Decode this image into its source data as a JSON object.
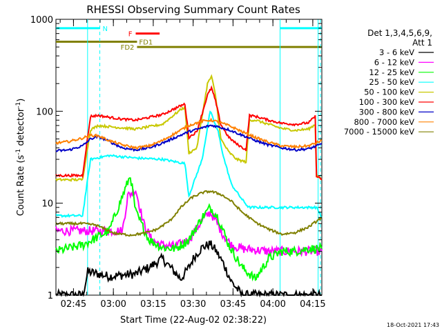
{
  "chart_data": {
    "type": "line",
    "title": "RHESSI Observing Summary Count Rates",
    "xlabel": "Start Time (22-Aug-02 02:38:22)",
    "ylabel": "Count Rate (s⁻¹ detector⁻¹)",
    "ylabel_parts": {
      "a": "Count Rate (s",
      "sup1": "-1",
      "b": " detector",
      "sup2": "-1",
      "c": ")"
    },
    "yscale": "log",
    "ylim": [
      1,
      1000
    ],
    "xlim_minutes": [
      0,
      100
    ],
    "x_ticks": [
      {
        "label": "02:45",
        "minute": 6.6
      },
      {
        "label": "03:00",
        "minute": 21.6
      },
      {
        "label": "03:15",
        "minute": 36.6
      },
      {
        "label": "03:30",
        "minute": 51.6
      },
      {
        "label": "03:45",
        "minute": 66.6
      },
      {
        "label": "04:00",
        "minute": 81.6
      },
      {
        "label": "04:15",
        "minute": 96.6
      }
    ],
    "y_ticks": [
      {
        "label": "1",
        "value": 1
      },
      {
        "label": "10",
        "value": 10
      },
      {
        "label": "100",
        "value": 100
      },
      {
        "label": "1000",
        "value": 1000
      }
    ],
    "legend_title": "Det 1,3,4,5,6,9,",
    "legend_subtitle": "Att 1",
    "legend_position": "right",
    "flags": [
      {
        "label": "N",
        "color": "#00ffff",
        "segments": [
          [
            0,
            16.5
          ],
          [
            84.3,
            100
          ]
        ],
        "level": 800
      },
      {
        "label": "F",
        "color": "#ff0000",
        "segments": [
          [
            30,
            39
          ]
        ],
        "level": 700
      },
      {
        "label": "FD1",
        "color": "#808000",
        "segments": [
          [
            0,
            30.5
          ]
        ],
        "level": 570
      },
      {
        "label": "FD2",
        "color": "#808000",
        "segments": [
          [
            30.5,
            100
          ]
        ],
        "level": 500
      }
    ],
    "saa_lines_minutes": [
      11.9,
      84.3,
      98.6
    ],
    "night_lines_minutes": [
      16.5,
      99.5
    ],
    "series": [
      {
        "name": "3 - 6 keV",
        "color": "#000000",
        "x": [
          0,
          10,
          11,
          12,
          20,
          30,
          35,
          40,
          47,
          50,
          52,
          55,
          58,
          60,
          63,
          66,
          70,
          75,
          80,
          85,
          90,
          95,
          100
        ],
        "values": [
          1,
          1,
          1.3,
          1.8,
          1.6,
          1.7,
          2.0,
          2.5,
          1.5,
          2.0,
          2.6,
          3.3,
          3.6,
          3.1,
          2.2,
          1.4,
          1,
          1,
          1,
          1,
          1,
          1,
          1
        ]
      },
      {
        "name": "6 - 12 keV",
        "color": "#ff00ff",
        "x": [
          0,
          10,
          15,
          20,
          25,
          27,
          30,
          33,
          36,
          40,
          45,
          50,
          55,
          58,
          60,
          63,
          66,
          70,
          75,
          80,
          85,
          90,
          95,
          100
        ],
        "values": [
          5,
          5,
          5,
          5,
          5,
          12,
          14,
          6,
          4,
          3.5,
          3.4,
          4.0,
          6.5,
          8.0,
          6.5,
          4.5,
          3.5,
          3.2,
          3.1,
          3.0,
          3.0,
          3.0,
          3.0,
          3.0
        ]
      },
      {
        "name": "12 - 25 keV",
        "color": "#00ff00",
        "x": [
          0,
          10,
          20,
          28,
          30,
          35,
          40,
          45,
          50,
          55,
          58,
          61,
          65,
          70,
          75,
          80,
          85,
          90,
          95,
          100
        ],
        "values": [
          3,
          3.5,
          5,
          20,
          8,
          4,
          3.3,
          3.2,
          4,
          7,
          9,
          7,
          3.5,
          2.0,
          1.5,
          2.5,
          3.0,
          3.0,
          3.2,
          3.2
        ]
      },
      {
        "name": "25 - 50 keV",
        "color": "#00ffff",
        "x": [
          0,
          10,
          13,
          20,
          30,
          40,
          48.5,
          50,
          55,
          58,
          61,
          63,
          66,
          70,
          72.5,
          80,
          85,
          90,
          95,
          98,
          100
        ],
        "values": [
          7.3,
          7.3,
          30,
          33,
          31,
          30,
          27,
          12,
          30,
          100,
          60,
          32,
          16,
          11,
          9,
          9,
          9,
          9,
          9,
          9,
          7
        ]
      },
      {
        "name": "50 - 100 keV",
        "color": "#c8c800",
        "x": [
          0,
          10,
          13,
          16,
          20,
          25,
          30,
          40,
          47,
          48.5,
          50,
          53,
          57,
          58.5,
          60,
          62,
          65,
          68,
          71.5,
          72.8,
          75,
          80,
          85,
          90,
          95,
          97.5,
          98,
          100
        ],
        "values": [
          18,
          18,
          63,
          70,
          68,
          66,
          64,
          72,
          105,
          110,
          35,
          40,
          200,
          240,
          150,
          50,
          36,
          30,
          28,
          80,
          80,
          72,
          65,
          62,
          64,
          72,
          20,
          18
        ]
      },
      {
        "name": "100 - 300 keV",
        "color": "#ff0000",
        "x": [
          0,
          10,
          13,
          16,
          20,
          25,
          30,
          40,
          47,
          48.5,
          50,
          53,
          57,
          58.5,
          60,
          62,
          65,
          68,
          71.5,
          72.8,
          75,
          80,
          85,
          90,
          95,
          97.5,
          98,
          100
        ],
        "values": [
          20,
          20,
          88,
          90,
          86,
          82,
          80,
          92,
          115,
          120,
          52,
          60,
          150,
          180,
          130,
          72,
          52,
          44,
          38,
          90,
          88,
          80,
          74,
          72,
          75,
          88,
          20,
          18
        ]
      },
      {
        "name": "300 - 800 keV",
        "color": "#0000c8",
        "x": [
          0,
          5,
          10,
          13,
          16,
          20,
          25,
          30,
          35,
          40,
          45,
          50,
          55,
          58,
          60,
          65,
          70,
          75,
          80,
          85,
          90,
          95,
          100
        ],
        "values": [
          37,
          38,
          42,
          50,
          53,
          47,
          40,
          38,
          40,
          45,
          52,
          60,
          66,
          70,
          69,
          63,
          55,
          48,
          43,
          40,
          38,
          39,
          44
        ]
      },
      {
        "name": "800 - 7000 keV",
        "color": "#ff8000",
        "x": [
          0,
          5,
          10,
          13,
          16,
          20,
          25,
          30,
          35,
          40,
          45,
          50,
          55,
          58,
          60,
          65,
          70,
          75,
          80,
          85,
          90,
          95,
          100
        ],
        "values": [
          45,
          47,
          51,
          55,
          54,
          48,
          43,
          40,
          42,
          48,
          58,
          70,
          78,
          80,
          78,
          70,
          60,
          52,
          46,
          42,
          41,
          42,
          48
        ]
      },
      {
        "name": "7000 - 15000 keV",
        "color": "#808000",
        "x": [
          0,
          10,
          15,
          18,
          22,
          28,
          33,
          38,
          43,
          47,
          51,
          55,
          58,
          62,
          66,
          70,
          75,
          80,
          85,
          90,
          95,
          100
        ],
        "values": [
          6,
          6,
          5.8,
          5.3,
          4.7,
          4.5,
          4.7,
          5.2,
          6.5,
          9,
          11.5,
          13,
          13.5,
          12.5,
          10.5,
          8,
          6.2,
          5.2,
          4.6,
          4.8,
          5.5,
          7
        ]
      }
    ]
  },
  "footer": {
    "timestamp": "18-Oct-2021 17:43"
  }
}
